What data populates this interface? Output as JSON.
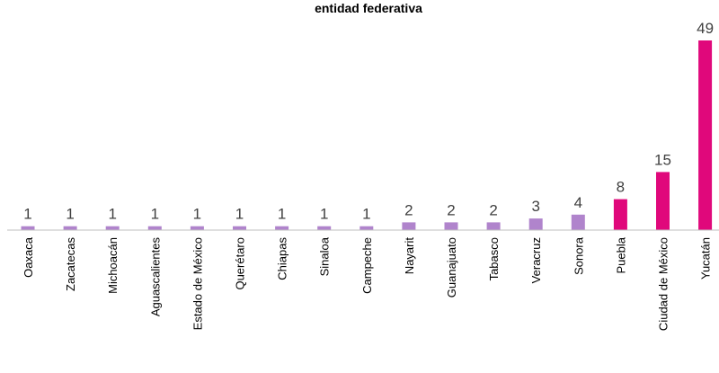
{
  "chart_data": {
    "type": "bar",
    "title": "entidad federativa",
    "categories": [
      "Oaxaca",
      "Zacatecas",
      "Michoacán",
      "Aguascalientes",
      "Estado de México",
      "Querétaro",
      "Chiapas",
      "Sinaloa",
      "Campeche",
      "Nayarit",
      "Guanajuato",
      "Tabasco",
      "Veracruz",
      "Sonora",
      "Puebla",
      "Ciudad de México",
      "Yucatán"
    ],
    "values": [
      1,
      1,
      1,
      1,
      1,
      1,
      1,
      1,
      1,
      2,
      2,
      2,
      3,
      4,
      8,
      15,
      49
    ],
    "ylim": [
      0,
      49
    ],
    "colors": {
      "low": "#b084cc",
      "high": "#e0087b",
      "axis": "#bfbfbf"
    },
    "highlight_from_value": 8,
    "grid": false,
    "legend": "none",
    "data_labels": true
  }
}
